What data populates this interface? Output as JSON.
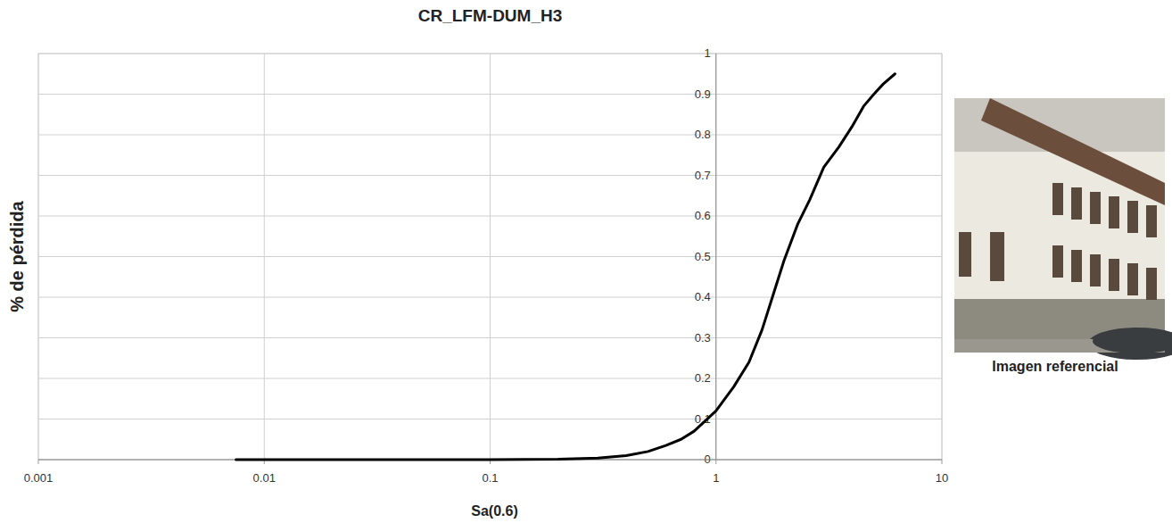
{
  "chart_data": {
    "type": "line",
    "title": "CR_LFM-DUM_H3",
    "x_label": "Sa(0.6)",
    "y_label": "% de pérdida",
    "caption": "Imagen referencial",
    "log": "x",
    "grid": true,
    "xlim": [
      0.001,
      10
    ],
    "xticks": [
      0.001,
      0.01,
      0.1,
      1,
      10
    ],
    "ylim": [
      0,
      1
    ],
    "yticks": [
      0,
      0.1,
      0.2,
      0.3,
      0.4,
      0.5,
      0.6,
      0.7,
      0.8,
      0.9,
      1
    ],
    "series": [
      {
        "name": "CR_LFM-DUM_H3",
        "color": "#000000",
        "line_style": "solid",
        "x": [
          0.0075,
          0.01,
          0.03,
          0.1,
          0.2,
          0.3,
          0.4,
          0.5,
          0.6,
          0.7,
          0.8,
          1,
          1.2,
          1.4,
          1.6,
          1.8,
          2,
          2.3,
          2.6,
          3,
          3.5,
          4,
          4.5,
          5,
          5.5,
          6.2
        ],
        "values": [
          0,
          0,
          0,
          0,
          0.001,
          0.004,
          0.01,
          0.02,
          0.035,
          0.05,
          0.07,
          0.12,
          0.18,
          0.24,
          0.32,
          0.41,
          0.49,
          0.58,
          0.64,
          0.72,
          0.77,
          0.82,
          0.87,
          0.9,
          0.925,
          0.95
        ]
      }
    ]
  }
}
